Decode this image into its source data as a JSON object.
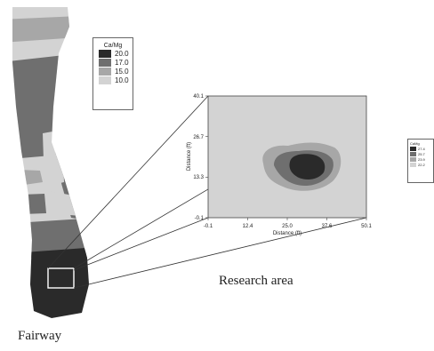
{
  "colors": {
    "dark": "#2a2a2a",
    "mid": "#6f6f6f",
    "light": "#a7a7a7",
    "lightest": "#d3d3d3"
  },
  "fairway_legend": {
    "title": "Ca/Mg",
    "items": [
      {
        "label": "20.0",
        "color": "#2a2a2a"
      },
      {
        "label": "17.0",
        "color": "#6f6f6f"
      },
      {
        "label": "15.0",
        "color": "#a7a7a7"
      },
      {
        "label": "10.0",
        "color": "#d3d3d3"
      }
    ]
  },
  "research_legend": {
    "title": "CaMg",
    "items": [
      {
        "label": "27.4",
        "color": "#2a2a2a"
      },
      {
        "label": "25.7",
        "color": "#6f6f6f"
      },
      {
        "label": "23.9",
        "color": "#a7a7a7"
      },
      {
        "label": "22.2",
        "color": "#d3d3d3"
      }
    ]
  },
  "research_plot": {
    "x_ticks": [
      "-0.1",
      "12.4",
      "25.0",
      "37.6",
      "50.1"
    ],
    "y_ticks": [
      "40.1",
      "26.7",
      "13.3",
      "-0.1"
    ],
    "x_label": "Distance (ft)",
    "y_label": "Distance (ft)"
  },
  "captions": {
    "research": "Research area",
    "fairway": "Fairway"
  }
}
